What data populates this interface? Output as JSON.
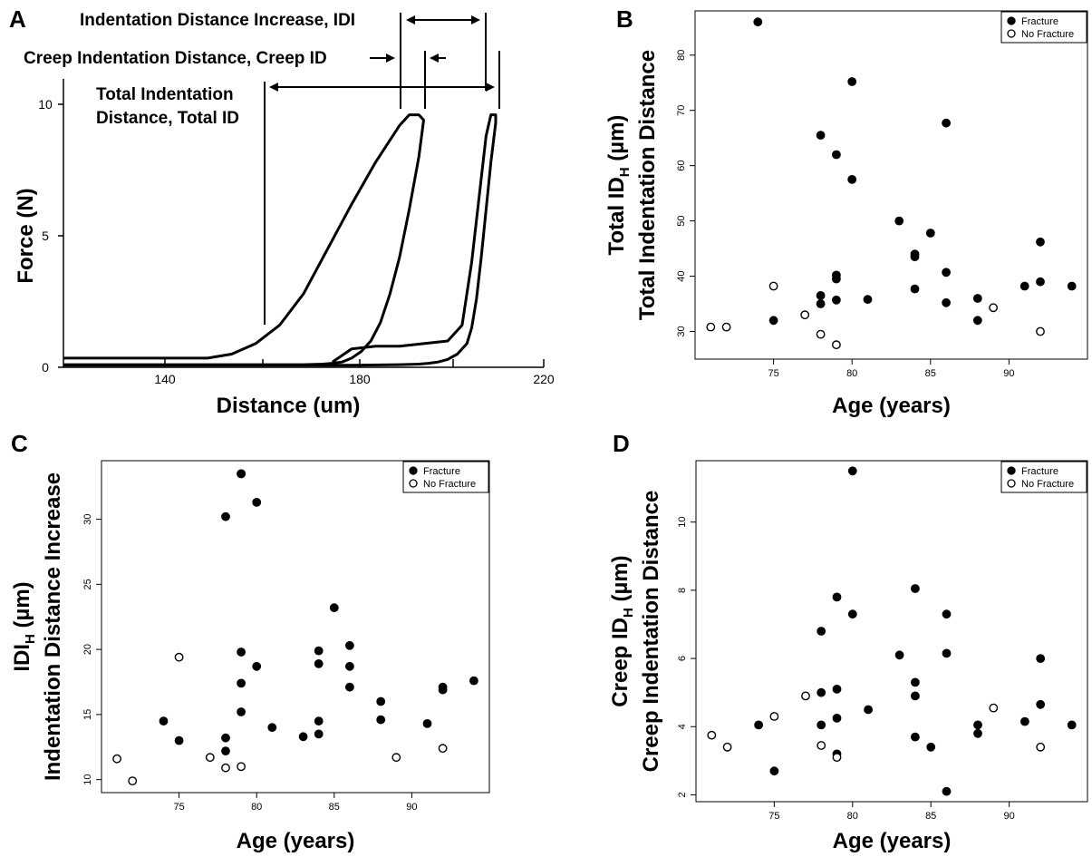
{
  "panel_letters": {
    "a": "A",
    "b": "B",
    "c": "C",
    "d": "D"
  },
  "legend": {
    "fracture": "Fracture",
    "no_fracture": "No Fracture"
  },
  "chart_data": [
    {
      "type": "line",
      "panel": "A",
      "xlabel": "Distance (um)",
      "ylabel": "Force (N)",
      "xlim": [
        120,
        220
      ],
      "ylim": [
        0,
        10
      ],
      "x_ticks": [
        "140",
        "180",
        "220"
      ],
      "y_ticks": [
        "0",
        "5",
        "10"
      ],
      "annotations": {
        "idi": "Indentation Distance Increase, IDI",
        "creep": "Creep Indentation Distance, Creep ID",
        "total_line1": "Total Indentation",
        "total_line2": "Distance, Total ID"
      },
      "series": [
        {
          "x": [
            120,
            150,
            155,
            160,
            165,
            170,
            175,
            180,
            185,
            190,
            192,
            193,
            194,
            195,
            194,
            192,
            190,
            188,
            186,
            184,
            182,
            180,
            178,
            176,
            174,
            170,
            160,
            150,
            140,
            130,
            120
          ],
          "y": [
            0.35,
            0.35,
            0.5,
            0.9,
            1.6,
            2.8,
            4.5,
            6.2,
            7.8,
            9.2,
            9.6,
            9.6,
            9.6,
            9.4,
            8.0,
            6.0,
            4.2,
            2.8,
            1.7,
            1.0,
            0.6,
            0.35,
            0.2,
            0.15,
            0.12,
            0.1,
            0.1,
            0.1,
            0.1,
            0.1,
            0.1
          ]
        },
        {
          "x": [
            176,
            180,
            185,
            190,
            195,
            200,
            203,
            205,
            207,
            208,
            209,
            210,
            210,
            209,
            208,
            207,
            206,
            205,
            204,
            202,
            200,
            198,
            196,
            194,
            190,
            180,
            170,
            160,
            150,
            140,
            120
          ],
          "y": [
            0.2,
            0.7,
            0.8,
            0.8,
            0.9,
            1.0,
            1.6,
            4.0,
            7.2,
            8.8,
            9.6,
            9.6,
            9.3,
            7.8,
            6.0,
            4.2,
            2.6,
            1.5,
            0.9,
            0.5,
            0.3,
            0.2,
            0.15,
            0.12,
            0.1,
            0.08,
            0.08,
            0.08,
            0.08,
            0.08,
            0.08
          ]
        }
      ]
    },
    {
      "type": "scatter",
      "panel": "B",
      "xlabel": "Age (years)",
      "ylabel_line1": "Total ID",
      "ylabel_line1_sub": "H",
      "ylabel_line1_unit": " (µm)",
      "ylabel_line2": "Total Indentation Distance",
      "xlim": [
        70,
        95
      ],
      "ylim": [
        25,
        88
      ],
      "x_ticks": [
        "75",
        "80",
        "85",
        "90"
      ],
      "y_ticks": [
        "30",
        "40",
        "50",
        "60",
        "70",
        "80"
      ],
      "series": [
        {
          "name": "Fracture",
          "points": [
            [
              74,
              86
            ],
            [
              75,
              32
            ],
            [
              78,
              65.5
            ],
            [
              78,
              36.5
            ],
            [
              78,
              35
            ],
            [
              79,
              62
            ],
            [
              79,
              40.2
            ],
            [
              79,
              39.5
            ],
            [
              79,
              35.7
            ],
            [
              80,
              75.2
            ],
            [
              80,
              57.5
            ],
            [
              81,
              35.8
            ],
            [
              83,
              50
            ],
            [
              84,
              44
            ],
            [
              84,
              43.5
            ],
            [
              84,
              37.7
            ],
            [
              85,
              47.8
            ],
            [
              86,
              67.7
            ],
            [
              86,
              40.7
            ],
            [
              86,
              35.2
            ],
            [
              88,
              36
            ],
            [
              88,
              32
            ],
            [
              91,
              38.2
            ],
            [
              92,
              46.2
            ],
            [
              92,
              39
            ],
            [
              94,
              38.2
            ]
          ]
        },
        {
          "name": "No Fracture",
          "points": [
            [
              71,
              30.8
            ],
            [
              72,
              30.8
            ],
            [
              75,
              38.2
            ],
            [
              77,
              33
            ],
            [
              78,
              29.5
            ],
            [
              79,
              27.6
            ],
            [
              89,
              34.3
            ],
            [
              92,
              30
            ]
          ]
        }
      ]
    },
    {
      "type": "scatter",
      "panel": "C",
      "xlabel": "Age (years)",
      "ylabel_line1": "IDI",
      "ylabel_line1_sub": "H",
      "ylabel_line1_unit": " (µm)",
      "ylabel_line2": "Indentation Distance Increase",
      "xlim": [
        70,
        95
      ],
      "ylim": [
        9,
        34.5
      ],
      "x_ticks": [
        "75",
        "80",
        "85",
        "90"
      ],
      "y_ticks": [
        "10",
        "15",
        "20",
        "25",
        "30"
      ],
      "series": [
        {
          "name": "Fracture",
          "points": [
            [
              74,
              14.5
            ],
            [
              75,
              13
            ],
            [
              78,
              30.2
            ],
            [
              78,
              13.2
            ],
            [
              78,
              12.2
            ],
            [
              79,
              33.5
            ],
            [
              79,
              33.5
            ],
            [
              79,
              19.8
            ],
            [
              79,
              17.4
            ],
            [
              79,
              15.2
            ],
            [
              80,
              31.3
            ],
            [
              80,
              18.7
            ],
            [
              81,
              14
            ],
            [
              83,
              13.3
            ],
            [
              84,
              19.9
            ],
            [
              84,
              18.9
            ],
            [
              84,
              14.5
            ],
            [
              84,
              13.5
            ],
            [
              85,
              23.2
            ],
            [
              86,
              20.3
            ],
            [
              86,
              18.7
            ],
            [
              86,
              17.1
            ],
            [
              88,
              16
            ],
            [
              88,
              14.6
            ],
            [
              91,
              14.3
            ],
            [
              92,
              17.1
            ],
            [
              92,
              16.9
            ],
            [
              94,
              17.6
            ]
          ]
        },
        {
          "name": "No Fracture",
          "points": [
            [
              71,
              11.6
            ],
            [
              72,
              9.9
            ],
            [
              75,
              19.4
            ],
            [
              77,
              11.7
            ],
            [
              78,
              10.9
            ],
            [
              79,
              11
            ],
            [
              89,
              11.7
            ],
            [
              92,
              12.4
            ]
          ]
        }
      ]
    },
    {
      "type": "scatter",
      "panel": "D",
      "xlabel": "Age (years)",
      "ylabel_line1": "Creep ID",
      "ylabel_line1_sub": "H",
      "ylabel_line1_unit": " (µm)",
      "ylabel_line2": "Creep Indentation Distance",
      "xlim": [
        70,
        95
      ],
      "ylim": [
        1.8,
        11.8
      ],
      "x_ticks": [
        "75",
        "80",
        "85",
        "90"
      ],
      "y_ticks": [
        "2",
        "4",
        "6",
        "8",
        "10"
      ],
      "series": [
        {
          "name": "Fracture",
          "points": [
            [
              74,
              4.05
            ],
            [
              75,
              2.7
            ],
            [
              78,
              6.8
            ],
            [
              78,
              5
            ],
            [
              78,
              4.05
            ],
            [
              79,
              7.8
            ],
            [
              79,
              5.1
            ],
            [
              79,
              4.25
            ],
            [
              79,
              3.2
            ],
            [
              80,
              11.5
            ],
            [
              80,
              7.3
            ],
            [
              81,
              4.5
            ],
            [
              83,
              6.1
            ],
            [
              84,
              8.05
            ],
            [
              84,
              5.3
            ],
            [
              84,
              4.9
            ],
            [
              84,
              3.7
            ],
            [
              85,
              3.4
            ],
            [
              86,
              7.3
            ],
            [
              86,
              6.15
            ],
            [
              86,
              2.1
            ],
            [
              88,
              4.05
            ],
            [
              88,
              3.8
            ],
            [
              91,
              4.15
            ],
            [
              92,
              6
            ],
            [
              92,
              4.65
            ],
            [
              94,
              4.05
            ]
          ]
        },
        {
          "name": "No Fracture",
          "points": [
            [
              71,
              3.75
            ],
            [
              72,
              3.4
            ],
            [
              75,
              4.3
            ],
            [
              77,
              4.9
            ],
            [
              78,
              3.45
            ],
            [
              79,
              3.1
            ],
            [
              89,
              4.55
            ],
            [
              92,
              3.4
            ]
          ]
        }
      ]
    }
  ]
}
